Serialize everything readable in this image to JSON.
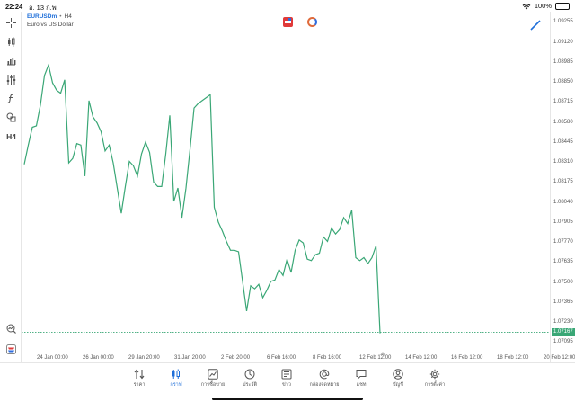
{
  "status_bar": {
    "time": "22:24",
    "date": "อ. 13 ก.พ.",
    "battery": "100%",
    "battery_level": 1.0
  },
  "chart_header": {
    "symbol": "EURUSDm",
    "separator": "•",
    "timeframe": "H4",
    "description": "Euro vs US Dollar"
  },
  "left_tools": [
    {
      "name": "crosshair-icon"
    },
    {
      "name": "candlestick-icon"
    },
    {
      "name": "bar-chart-icon"
    },
    {
      "name": "sliders-icon"
    },
    {
      "name": "function-icon"
    },
    {
      "name": "shapes-icon"
    },
    {
      "name": "timeframe-h4",
      "label": "H4"
    }
  ],
  "bottom_left_icons": [
    {
      "name": "search-chart-icon"
    },
    {
      "name": "broker-logo-icon"
    }
  ],
  "colors": {
    "line": "#3aa776",
    "accent": "#1f6fd9",
    "price_tag": "#3aa776"
  },
  "price_axis": {
    "labels": [
      "1.09255",
      "1.09120",
      "1.08985",
      "1.08850",
      "1.08715",
      "1.08580",
      "1.08445",
      "1.08310",
      "1.08175",
      "1.08040",
      "1.07905",
      "1.07770",
      "1.07635",
      "1.07500",
      "1.07365",
      "1.07230",
      "1.07095"
    ],
    "current_price": "1.07167"
  },
  "time_axis": {
    "labels": [
      "24 Jan 00:00",
      "26 Jan 00:00",
      "29 Jan 20:00",
      "31 Jan 20:00",
      "2 Feb 20:00",
      "6 Feb 16:00",
      "8 Feb 16:00",
      "12 Feb 12:00",
      "14 Feb 12:00",
      "16 Feb 12:00",
      "18 Feb 12:00",
      "20 Feb 12:00"
    ]
  },
  "chart_data": {
    "type": "line",
    "ylim": [
      1.0703,
      1.0933
    ],
    "current_price": 1.07167,
    "y": [
      1.083,
      1.0843,
      1.0855,
      1.0856,
      1.087,
      1.089,
      1.0897,
      1.0885,
      1.088,
      1.0878,
      1.0887,
      1.0831,
      1.0834,
      1.0844,
      1.0843,
      1.0822,
      1.0873,
      1.0862,
      1.0858,
      1.0852,
      1.0839,
      1.0843,
      1.0831,
      1.0814,
      1.0797,
      1.0815,
      1.0832,
      1.0829,
      1.0822,
      1.0837,
      1.0845,
      1.0838,
      1.0818,
      1.0815,
      1.0815,
      1.0837,
      1.0863,
      1.0805,
      1.0814,
      1.0794,
      1.0814,
      1.084,
      1.0868,
      1.0871,
      1.0873,
      1.0875,
      1.0877,
      1.0801,
      1.0791,
      1.0785,
      1.0778,
      1.0772,
      1.0772,
      1.0771,
      1.0751,
      1.0731,
      1.0748,
      1.0746,
      1.0749,
      1.074,
      1.0745,
      1.0751,
      1.0752,
      1.0759,
      1.0755,
      1.0766,
      1.0757,
      1.0772,
      1.0779,
      1.0777,
      1.0766,
      1.0765,
      1.0769,
      1.077,
      1.0781,
      1.0778,
      1.0787,
      1.0783,
      1.0786,
      1.0794,
      1.079,
      1.0799,
      1.0767,
      1.0765,
      1.0767,
      1.0763,
      1.0767,
      1.0775,
      1.0716
    ]
  },
  "bottom_nav": {
    "items": [
      {
        "name": "nav-quotes",
        "label": "ราคา",
        "active": false
      },
      {
        "name": "nav-chart",
        "label": "กราฟ",
        "active": true
      },
      {
        "name": "nav-trade",
        "label": "การซื้อขาย",
        "active": false
      },
      {
        "name": "nav-history",
        "label": "ประวัติ",
        "active": false
      },
      {
        "name": "nav-news",
        "label": "ข่าว",
        "active": false
      },
      {
        "name": "nav-mailbox",
        "label": "กล่องจดหมาย",
        "active": false
      },
      {
        "name": "nav-chat",
        "label": "แชท",
        "active": false
      },
      {
        "name": "nav-accounts",
        "label": "บัญชี",
        "active": false
      },
      {
        "name": "nav-settings",
        "label": "การตั้งค่า",
        "active": false
      }
    ]
  }
}
